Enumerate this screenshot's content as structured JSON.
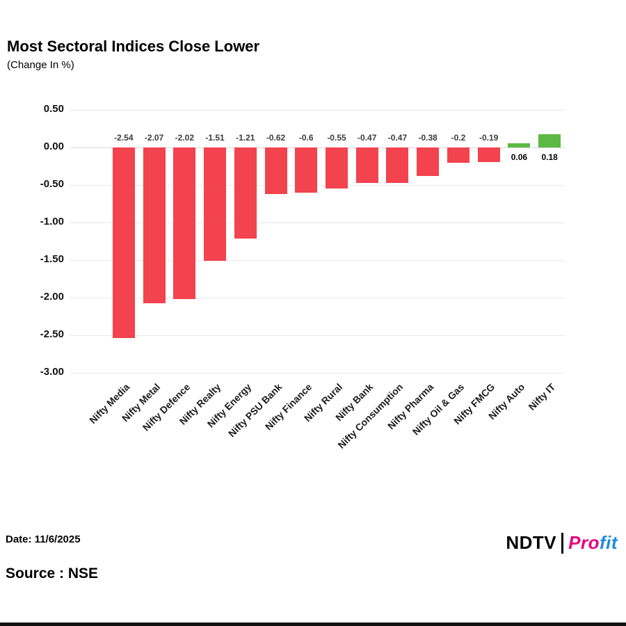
{
  "header": {
    "title": "Most Sectoral Indices Close Lower",
    "subtitle": "(Change In %)"
  },
  "chart_data": {
    "type": "bar",
    "title": "Most Sectoral Indices Close Lower",
    "xlabel": "",
    "ylabel": "Change In %",
    "categories": [
      "Nifty Media",
      "Nifty Metal",
      "Nifty Defence",
      "Nifty Realty",
      "Nifty Energy",
      "Nifty PSU Bank",
      "Nifty Finance",
      "Nifty Rural",
      "Nifty Bank",
      "Nifty Consumption",
      "Nifty Pharma",
      "Nifty Oil & Gas",
      "Nifty FMCG",
      "Nifty Auto",
      "Nifty IT"
    ],
    "values": [
      -2.54,
      -2.07,
      -2.02,
      -1.51,
      -1.21,
      -0.62,
      -0.6,
      -0.55,
      -0.47,
      -0.47,
      -0.38,
      -0.2,
      -0.19,
      0.06,
      0.18
    ],
    "value_labels": [
      "-2.54",
      "-2.07",
      "-2.02",
      "-1.51",
      "-1.21",
      "-0.62",
      "-0.6",
      "-0.55",
      "-0.47",
      "-0.47",
      "-0.38",
      "-0.2",
      "-0.19",
      "0.06",
      "0.18"
    ],
    "ylim": [
      -3.0,
      0.5
    ],
    "y_ticks": [
      "0.50",
      "0.00",
      "-0.50",
      "-1.00",
      "-1.50",
      "-2.00",
      "-2.50",
      "-3.00"
    ],
    "y_tick_values": [
      0.5,
      0,
      -0.5,
      -1,
      -1.5,
      -2,
      -2.5,
      -3
    ],
    "grid": true,
    "legend": "none",
    "colors": {
      "negative": "#f2434e",
      "positive": "#5cb943"
    }
  },
  "footer": {
    "date": "Date: 11/6/2025",
    "source": "Source : NSE",
    "logo": {
      "ndtv": "NDTV",
      "profit_pro": "Pro",
      "profit_fit": "fit"
    }
  }
}
